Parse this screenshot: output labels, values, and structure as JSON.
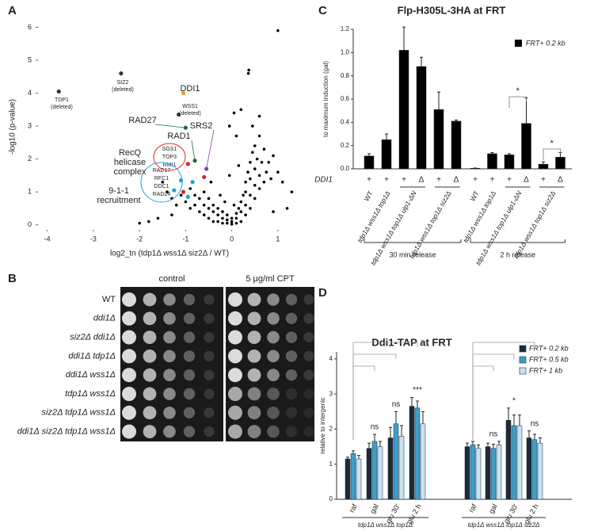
{
  "panels": [
    "A",
    "B",
    "C",
    "D"
  ],
  "spot_assay": {
    "conditions": [
      "control",
      "5 μg/ml CPT"
    ],
    "strains": [
      "WT",
      "ddi1Δ",
      "siz2Δ ddi1Δ",
      "ddi1Δ tdp1Δ",
      "ddi1Δ wss1Δ",
      "tdp1Δ wss1Δ",
      "siz2Δ tdp1Δ wss1Δ",
      "ddi1Δ siz2Δ tdp1Δ wss1Δ"
    ]
  },
  "chart_data": [
    {
      "type": "scatter",
      "x_label": "log2_tn (tdp1Δ wss1Δ siz2Δ / WT)",
      "y_label": "-log10 (p-value)",
      "xlim": [
        -4.2,
        1.5
      ],
      "ylim": [
        -0.2,
        6.3
      ],
      "xticks": [
        -4,
        -3,
        -2,
        -1,
        0,
        1
      ],
      "yticks": [
        0,
        1,
        2,
        3,
        4,
        5,
        6
      ],
      "color": "#000000",
      "x": [
        -1.4,
        -1.3,
        -1.2,
        -1.1,
        -1.0,
        -0.9,
        -0.9,
        -0.8,
        -0.8,
        -0.7,
        -0.7,
        -0.6,
        -0.6,
        -0.6,
        -0.5,
        -0.5,
        -0.5,
        -0.4,
        -0.4,
        -0.4,
        -0.3,
        -0.3,
        -0.3,
        -0.2,
        -0.2,
        -0.2,
        -0.1,
        -0.1,
        -0.1,
        0,
        0,
        0,
        0.1,
        0.1,
        0.1,
        0.15,
        0.2,
        0.2,
        0.2,
        0.25,
        0.3,
        0.3,
        0.3,
        0.3,
        0.35,
        0.4,
        0.4,
        0.4,
        0.4,
        0.45,
        0.5,
        0.5,
        0.5,
        0.5,
        0.55,
        0.6,
        0.6,
        0.6,
        0.65,
        0.7,
        0.7,
        0.75,
        0.8,
        0.85,
        0.9,
        1.0,
        1.1,
        0.05,
        -0.05,
        0.1,
        -1.6,
        -1.5,
        -1.3,
        -1.8,
        0.36,
        0.37,
        1.0,
        0.2,
        0.6,
        0.45,
        -0.25,
        -0.15,
        0.05,
        -2.0,
        1.3,
        1.2,
        0.9,
        -0.45,
        -0.05,
        0.15
      ],
      "y": [
        1.0,
        0.8,
        0.6,
        0.9,
        0.7,
        0.5,
        1.1,
        0.6,
        0.9,
        0.4,
        0.8,
        0.3,
        0.6,
        1.0,
        0.2,
        0.5,
        0.8,
        0.1,
        0.4,
        0.6,
        0.1,
        0.3,
        0.5,
        0.05,
        0.2,
        0.4,
        0.05,
        0.15,
        0.3,
        0.02,
        0.1,
        0.2,
        0.05,
        0.2,
        0.35,
        0.5,
        0.1,
        0.4,
        0.7,
        0.9,
        0.3,
        0.6,
        1.0,
        1.3,
        1.6,
        0.5,
        0.9,
        1.4,
        1.9,
        2.2,
        0.8,
        1.2,
        1.7,
        2.4,
        2.0,
        1.1,
        1.5,
        2.7,
        1.9,
        1.3,
        2.3,
        1.6,
        1.9,
        1.4,
        2.1,
        1.6,
        1.3,
        3.4,
        3.0,
        2.7,
        0.2,
        1.3,
        0.3,
        0.1,
        4.6,
        4.7,
        5.9,
        3.5,
        3.3,
        3.0,
        0.9,
        0.7,
        0.6,
        0.05,
        1.0,
        0.5,
        0.4,
        1.3,
        1.5,
        1.8
      ],
      "highlighted": [
        {
          "label": "TDP1",
          "note": "(deleted)",
          "x": -3.75,
          "y": 4.05,
          "color": "#333333"
        },
        {
          "label": "SIZ2",
          "note": "(deleted)",
          "x": -2.4,
          "y": 4.6,
          "color": "#333333"
        },
        {
          "label": "DDI1",
          "x": -1.05,
          "y": 4.0,
          "color": "#f0a020"
        },
        {
          "label": "WSS1",
          "note": "(deleted)",
          "x": -1.15,
          "y": 3.35,
          "color": "#333333"
        },
        {
          "label": "RAD27",
          "x": -1.0,
          "y": 2.95,
          "color": "#1e6b2e"
        },
        {
          "label": "RAD1",
          "x": -0.8,
          "y": 1.95,
          "color": "#1e6b2e"
        },
        {
          "label": "SRS2",
          "x": -0.55,
          "y": 1.7,
          "color": "#8a3fa8"
        },
        {
          "label": "SGS1",
          "x": -0.95,
          "y": 1.85,
          "color": "#e0242a"
        },
        {
          "label": "TOP3",
          "x": -0.6,
          "y": 1.45,
          "color": "#e0242a"
        },
        {
          "label": "RMI1",
          "x": -1.05,
          "y": 1.0,
          "color": "#e0242a"
        },
        {
          "label": "RAD17",
          "x": -1.1,
          "y": 1.35,
          "color": "#1aa3d9"
        },
        {
          "label": "RFC1",
          "x": -1.25,
          "y": 1.05,
          "color": "#1aa3d9"
        },
        {
          "label": "DDC1",
          "x": -0.95,
          "y": 0.85,
          "color": "#1aa3d9"
        },
        {
          "label": "RAD24",
          "x": -0.85,
          "y": 1.3,
          "color": "#1aa3d9"
        }
      ],
      "groups": [
        {
          "lines": [
            "RecQ",
            "helicase",
            "complex"
          ],
          "color": "#e0242a"
        },
        {
          "lines": [
            "9-1-1",
            "recruitment"
          ],
          "color": "#1aa3d9"
        }
      ]
    },
    {
      "type": "bar",
      "title": "Flp-H305L-3HA at FRT",
      "y_label": "to maximum induction (gal)",
      "ylim": [
        0,
        1.2
      ],
      "yticks": [
        {
          "value": 0,
          "label": "0.0"
        },
        0.2,
        0.4,
        0.6,
        0.8,
        {
          "value": 1,
          "label": "1.0"
        },
        1.2
      ],
      "series": [
        {
          "name": "FRT+ 0.2 kb",
          "color": "#000000",
          "values": [
            0.11,
            0.25,
            1.02,
            0.88,
            0.51,
            0.41,
            0.005,
            0.13,
            0.12,
            0.39,
            0.04,
            0.1
          ],
          "errors": [
            0.02,
            0.05,
            0.2,
            0.08,
            0.15,
            0.01,
            0.002,
            0.01,
            0.01,
            0.22,
            0.02,
            0.04
          ]
        }
      ],
      "genotype_row": {
        "label": "DDI1",
        "values": [
          "+",
          "+",
          "+",
          "Δ",
          "+",
          "Δ",
          "+",
          "+",
          "+",
          "Δ",
          "+",
          "Δ"
        ]
      },
      "strains": [
        "WT",
        "tdp1Δ wss1Δ top1Δ",
        "tdp1Δ wss1Δ top1Δ ulp1-ΔN",
        "tdp1Δ wss1Δ top1Δ siz2Δ"
      ],
      "groups": [
        "30 min release",
        "2 h release"
      ],
      "significance": [
        "*",
        "*"
      ]
    },
    {
      "type": "grouped_bar",
      "title": "Ddi1-TAP at FRT",
      "y_label": "relative to intergenic",
      "ylim": [
        0,
        4.2
      ],
      "yticks": [
        0,
        1,
        2,
        3,
        4
      ],
      "categories": [
        "raf",
        "gal",
        "glu 30'",
        "glu 2 h",
        "raf",
        "gal",
        "glu 30'",
        "glu 2 h"
      ],
      "series": [
        {
          "name": "FRT+ 0.2 kb",
          "color": "#1c2b3a",
          "values": [
            1.15,
            1.45,
            1.75,
            2.65,
            1.5,
            1.5,
            2.25,
            1.75
          ],
          "errors": [
            0.05,
            0.15,
            0.3,
            0.25,
            0.1,
            0.1,
            0.35,
            0.2
          ]
        },
        {
          "name": "FRT+ 0.5 kb",
          "color": "#3d9fc9",
          "values": [
            1.3,
            1.65,
            2.15,
            2.6,
            1.55,
            1.45,
            2.1,
            1.7
          ],
          "errors": [
            0.08,
            0.2,
            0.35,
            0.2,
            0.1,
            0.12,
            0.3,
            0.15
          ]
        },
        {
          "name": "FRT+ 1 kb",
          "color": "#c9e3f2",
          "values": [
            1.15,
            1.5,
            1.8,
            2.15,
            1.45,
            1.55,
            2.1,
            1.6
          ],
          "errors": [
            0.1,
            0.15,
            0.3,
            0.35,
            0.1,
            0.1,
            0.3,
            0.15
          ]
        }
      ],
      "groups": [
        "tdp1Δ wss1Δ top1Δ",
        "tdp1Δ wss1Δ top1Δ siz2Δ"
      ],
      "significance": [
        "ns",
        "ns",
        "***",
        "ns",
        "*",
        "ns"
      ]
    }
  ]
}
